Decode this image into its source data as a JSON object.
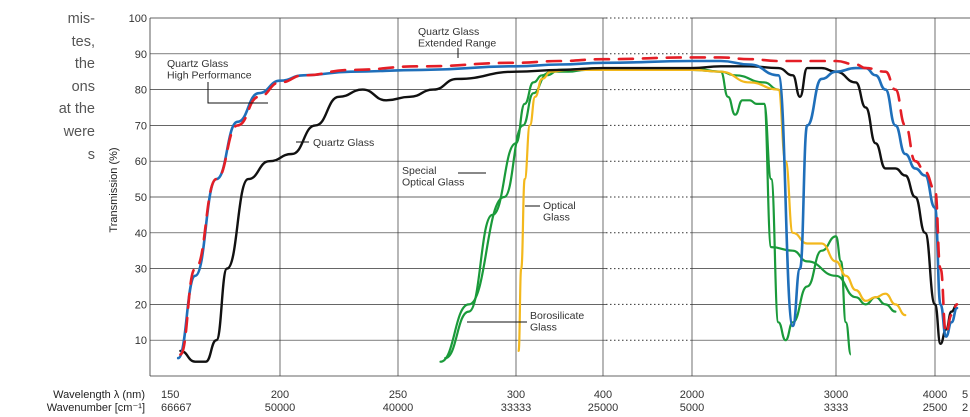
{
  "side_text": [
    "mis-",
    "tes,",
    " the",
    "ons",
    "at the",
    "were",
    "s"
  ],
  "chart_data": {
    "type": "line",
    "ylabel": "Transmission (%)",
    "ylim": [
      0,
      100
    ],
    "yticks": [
      10,
      20,
      30,
      40,
      50,
      60,
      70,
      80,
      90,
      100
    ],
    "x_axis_labels": {
      "wavelength": "Wavelength  λ (nm)",
      "wavenumber": "Wavenumber  [cm⁻¹]"
    },
    "xticks": [
      {
        "wl": "150",
        "wn": "66667"
      },
      {
        "wl": "200",
        "wn": "50000"
      },
      {
        "wl": "250",
        "wn": "40000"
      },
      {
        "wl": "300",
        "wn": "33333"
      },
      {
        "wl": "400",
        "wn": "25000"
      },
      {
        "wl": "2000",
        "wn": "5000"
      },
      {
        "wl": "3000",
        "wn": "3333"
      },
      {
        "wl": "4000",
        "wn": "2500"
      },
      {
        "wl": "5",
        "wn": "2"
      }
    ],
    "annotations": {
      "qg_ext": [
        "Quartz Glass",
        "Extended Range"
      ],
      "qg_hp": [
        "Quartz Glass",
        "High Performance"
      ],
      "qg": [
        "Quartz Glass"
      ],
      "special": [
        "Special",
        "Optical Glass"
      ],
      "optical": [
        "Optical",
        "Glass"
      ],
      "boro": [
        "Borosilicate",
        "Glass"
      ]
    },
    "series": [
      {
        "key": "qg_ext",
        "color": "#e41e26",
        "width": 2.6,
        "points": [
          [
            153,
            6
          ],
          [
            160,
            30
          ],
          [
            170,
            55
          ],
          [
            180,
            70
          ],
          [
            190,
            78
          ],
          [
            200,
            82
          ],
          [
            210,
            84
          ],
          [
            230,
            85.5
          ],
          [
            260,
            86.5
          ],
          [
            300,
            87.5
          ],
          [
            350,
            88
          ],
          [
            400,
            88.5
          ],
          [
            2000,
            89
          ],
          [
            2200,
            89
          ],
          [
            2400,
            88.5
          ],
          [
            2600,
            88
          ],
          [
            2700,
            88
          ],
          [
            2900,
            88
          ],
          [
            3000,
            88
          ],
          [
            3200,
            87
          ],
          [
            3300,
            86
          ],
          [
            3500,
            85
          ],
          [
            3600,
            80
          ],
          [
            3700,
            70
          ],
          [
            3800,
            60
          ],
          [
            3900,
            57
          ],
          [
            4000,
            52
          ],
          [
            4100,
            30
          ],
          [
            4200,
            12
          ],
          [
            4300,
            17
          ],
          [
            4400,
            20
          ]
        ]
      },
      {
        "key": "qg_hp",
        "color": "#1f6fba",
        "width": 2.6,
        "points": [
          [
            152,
            5
          ],
          [
            160,
            28
          ],
          [
            170,
            55
          ],
          [
            180,
            71
          ],
          [
            190,
            79
          ],
          [
            200,
            82.5
          ],
          [
            210,
            84
          ],
          [
            230,
            85
          ],
          [
            260,
            85.5
          ],
          [
            300,
            86.5
          ],
          [
            350,
            87
          ],
          [
            400,
            87.5
          ],
          [
            2000,
            88
          ],
          [
            2200,
            88
          ],
          [
            2400,
            87
          ],
          [
            2600,
            84
          ],
          [
            2700,
            14
          ],
          [
            2750,
            30
          ],
          [
            2800,
            70
          ],
          [
            2900,
            83
          ],
          [
            3000,
            85
          ],
          [
            3200,
            86
          ],
          [
            3300,
            86
          ],
          [
            3400,
            84
          ],
          [
            3500,
            80
          ],
          [
            3600,
            70
          ],
          [
            3700,
            62
          ],
          [
            3800,
            58
          ],
          [
            3900,
            56
          ],
          [
            4000,
            47
          ],
          [
            4100,
            20
          ],
          [
            4200,
            11
          ],
          [
            4300,
            15
          ],
          [
            4400,
            19
          ]
        ]
      },
      {
        "key": "qg",
        "color": "#111111",
        "width": 2.4,
        "points": [
          [
            153,
            7
          ],
          [
            160,
            4
          ],
          [
            165,
            4
          ],
          [
            170,
            10
          ],
          [
            175,
            30
          ],
          [
            185,
            55
          ],
          [
            195,
            60
          ],
          [
            205,
            62
          ],
          [
            215,
            70
          ],
          [
            225,
            78
          ],
          [
            235,
            80
          ],
          [
            245,
            77
          ],
          [
            255,
            78
          ],
          [
            265,
            80
          ],
          [
            275,
            83
          ],
          [
            300,
            85
          ],
          [
            350,
            85.5
          ],
          [
            400,
            86
          ],
          [
            2000,
            86
          ],
          [
            2200,
            86.5
          ],
          [
            2400,
            86.5
          ],
          [
            2600,
            86
          ],
          [
            2700,
            84
          ],
          [
            2750,
            78
          ],
          [
            2800,
            86
          ],
          [
            2900,
            86
          ],
          [
            3000,
            85
          ],
          [
            3200,
            82
          ],
          [
            3300,
            75
          ],
          [
            3400,
            65
          ],
          [
            3500,
            58
          ],
          [
            3600,
            58
          ],
          [
            3700,
            56
          ],
          [
            3800,
            50
          ],
          [
            3900,
            40
          ],
          [
            4000,
            20
          ],
          [
            4100,
            9
          ],
          [
            4200,
            13
          ],
          [
            4300,
            18
          ],
          [
            4400,
            20
          ]
        ]
      },
      {
        "key": "special",
        "color": "#1a9a3a",
        "width": 2.2,
        "points": [
          [
            270,
            5
          ],
          [
            280,
            18
          ],
          [
            290,
            45
          ],
          [
            300,
            65
          ],
          [
            310,
            76
          ],
          [
            320,
            82
          ],
          [
            330,
            84
          ],
          [
            340,
            85
          ],
          [
            360,
            85
          ],
          [
            380,
            85.5
          ],
          [
            400,
            85.5
          ],
          [
            2000,
            85.5
          ],
          [
            2200,
            85
          ],
          [
            2250,
            78
          ],
          [
            2300,
            73
          ],
          [
            2350,
            77
          ],
          [
            2400,
            77
          ],
          [
            2450,
            76
          ],
          [
            2500,
            76
          ],
          [
            2550,
            36
          ],
          [
            2700,
            35
          ],
          [
            2800,
            32
          ],
          [
            3000,
            28
          ],
          [
            3200,
            22
          ],
          [
            3300,
            20
          ],
          [
            3400,
            22
          ],
          [
            3500,
            20
          ],
          [
            3600,
            18
          ]
        ],
        "branch": [
          [
            2500,
            76
          ],
          [
            2550,
            55
          ],
          [
            2600,
            15
          ],
          [
            2650,
            10
          ],
          [
            2700,
            15
          ],
          [
            2800,
            25
          ],
          [
            2900,
            35
          ],
          [
            3000,
            39
          ],
          [
            3050,
            32
          ],
          [
            3100,
            15
          ],
          [
            3150,
            6
          ]
        ]
      },
      {
        "key": "special2",
        "color": "#1a9a3a",
        "width": 2.2,
        "points": [
          [
            268,
            4
          ],
          [
            280,
            20
          ],
          [
            295,
            50
          ],
          [
            308,
            70
          ],
          [
            320,
            79
          ],
          [
            335,
            84
          ],
          [
            350,
            85.5
          ],
          [
            400,
            86
          ],
          [
            2000,
            86
          ],
          [
            2200,
            85
          ],
          [
            2300,
            84
          ],
          [
            2500,
            82
          ],
          [
            2600,
            80
          ]
        ]
      },
      {
        "key": "optical",
        "color": "#f3b81c",
        "width": 2.2,
        "points": [
          [
            303,
            7
          ],
          [
            306,
            30
          ],
          [
            310,
            55
          ],
          [
            316,
            70
          ],
          [
            322,
            78
          ],
          [
            330,
            83
          ],
          [
            340,
            85
          ],
          [
            360,
            85.5
          ],
          [
            400,
            85.5
          ],
          [
            2000,
            85.5
          ],
          [
            2200,
            85
          ],
          [
            2400,
            82
          ],
          [
            2600,
            80
          ],
          [
            2650,
            60
          ],
          [
            2700,
            40
          ],
          [
            2800,
            37
          ],
          [
            2900,
            37
          ],
          [
            3000,
            32
          ],
          [
            3100,
            28
          ],
          [
            3200,
            24
          ],
          [
            3300,
            21
          ],
          [
            3400,
            22
          ],
          [
            3500,
            23
          ],
          [
            3600,
            20
          ],
          [
            3700,
            17
          ]
        ]
      }
    ]
  }
}
